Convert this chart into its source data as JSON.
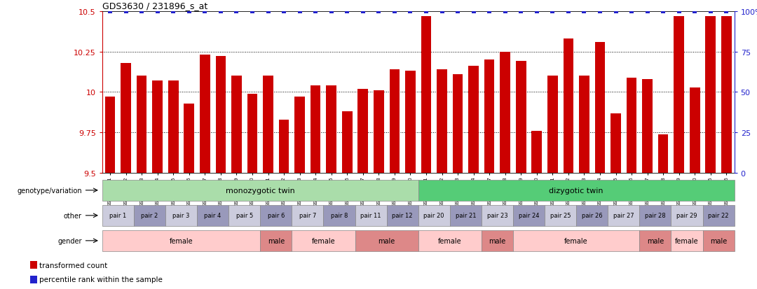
{
  "title": "GDS3630 / 231896_s_at",
  "samples": [
    "GSM189751",
    "GSM189752",
    "GSM189753",
    "GSM189754",
    "GSM189755",
    "GSM189756",
    "GSM189757",
    "GSM189758",
    "GSM189759",
    "GSM189760",
    "GSM189761",
    "GSM189762",
    "GSM189763",
    "GSM189764",
    "GSM189765",
    "GSM189766",
    "GSM189767",
    "GSM189768",
    "GSM189769",
    "GSM189770",
    "GSM189771",
    "GSM189772",
    "GSM189773",
    "GSM189774",
    "GSM189777",
    "GSM189778",
    "GSM189779",
    "GSM189780",
    "GSM189781",
    "GSM189782",
    "GSM189783",
    "GSM189784",
    "GSM189785",
    "GSM189786",
    "GSM189787",
    "GSM189788",
    "GSM189789",
    "GSM189790",
    "GSM189775",
    "GSM189776"
  ],
  "bar_values": [
    9.97,
    10.18,
    10.1,
    10.07,
    10.07,
    9.93,
    10.23,
    10.22,
    10.1,
    9.99,
    10.1,
    9.83,
    9.97,
    10.04,
    10.04,
    9.88,
    10.02,
    10.01,
    10.14,
    10.13,
    10.47,
    10.14,
    10.11,
    10.16,
    10.2,
    10.25,
    10.19,
    9.76,
    10.1,
    10.33,
    10.1,
    10.31,
    9.87,
    10.09,
    10.08,
    9.74,
    10.47,
    10.03,
    10.47,
    10.47
  ],
  "percentile_values": [
    100,
    100,
    100,
    100,
    100,
    100,
    100,
    100,
    100,
    100,
    100,
    100,
    100,
    100,
    100,
    100,
    100,
    100,
    100,
    100,
    100,
    100,
    100,
    100,
    100,
    100,
    100,
    100,
    100,
    100,
    100,
    100,
    100,
    100,
    100,
    100,
    100,
    100,
    100,
    100
  ],
  "ylim": [
    9.5,
    10.5
  ],
  "yticks": [
    9.5,
    9.75,
    10.0,
    10.25,
    10.5
  ],
  "ytick_labels": [
    "9.5",
    "9.75",
    "10",
    "10.25",
    "10.5"
  ],
  "right_yticks": [
    0,
    25,
    50,
    75,
    100
  ],
  "right_ytick_labels": [
    "0",
    "25",
    "50",
    "75",
    "100%"
  ],
  "bar_color": "#cc0000",
  "percentile_color": "#2222cc",
  "grid_values": [
    9.75,
    10.0,
    10.25
  ],
  "mono_count": 20,
  "di_count": 20,
  "mono_label": "monozygotic twin",
  "di_label": "dizygotic twin",
  "mono_color": "#aaddaa",
  "di_color": "#55cc77",
  "pairs": [
    "pair 1",
    "pair 2",
    "pair 3",
    "pair 4",
    "pair 5",
    "pair 6",
    "pair 7",
    "pair 8",
    "pair 11",
    "pair 12",
    "pair 20",
    "pair 21",
    "pair 23",
    "pair 24",
    "pair 25",
    "pair 26",
    "pair 27",
    "pair 28",
    "pair 29",
    "pair 22"
  ],
  "pair_color_even": "#ccccdd",
  "pair_color_odd": "#9999bb",
  "gender_segments": [
    {
      "label": "female",
      "count": 10,
      "color": "#ffcccc"
    },
    {
      "label": "male",
      "count": 2,
      "color": "#dd8888"
    },
    {
      "label": "female",
      "count": 4,
      "color": "#ffcccc"
    },
    {
      "label": "male",
      "count": 4,
      "color": "#dd8888"
    },
    {
      "label": "female",
      "count": 4,
      "color": "#ffcccc"
    },
    {
      "label": "male",
      "count": 2,
      "color": "#dd8888"
    },
    {
      "label": "female",
      "count": 8,
      "color": "#ffcccc"
    },
    {
      "label": "male",
      "count": 2,
      "color": "#dd8888"
    },
    {
      "label": "female",
      "count": 2,
      "color": "#ffcccc"
    },
    {
      "label": "male",
      "count": 2,
      "color": "#dd8888"
    }
  ],
  "row_labels": [
    "genotype/variation",
    "other",
    "gender"
  ],
  "legend_items": [
    {
      "label": "transformed count",
      "color": "#cc0000"
    },
    {
      "label": "percentile rank within the sample",
      "color": "#2222cc"
    }
  ]
}
